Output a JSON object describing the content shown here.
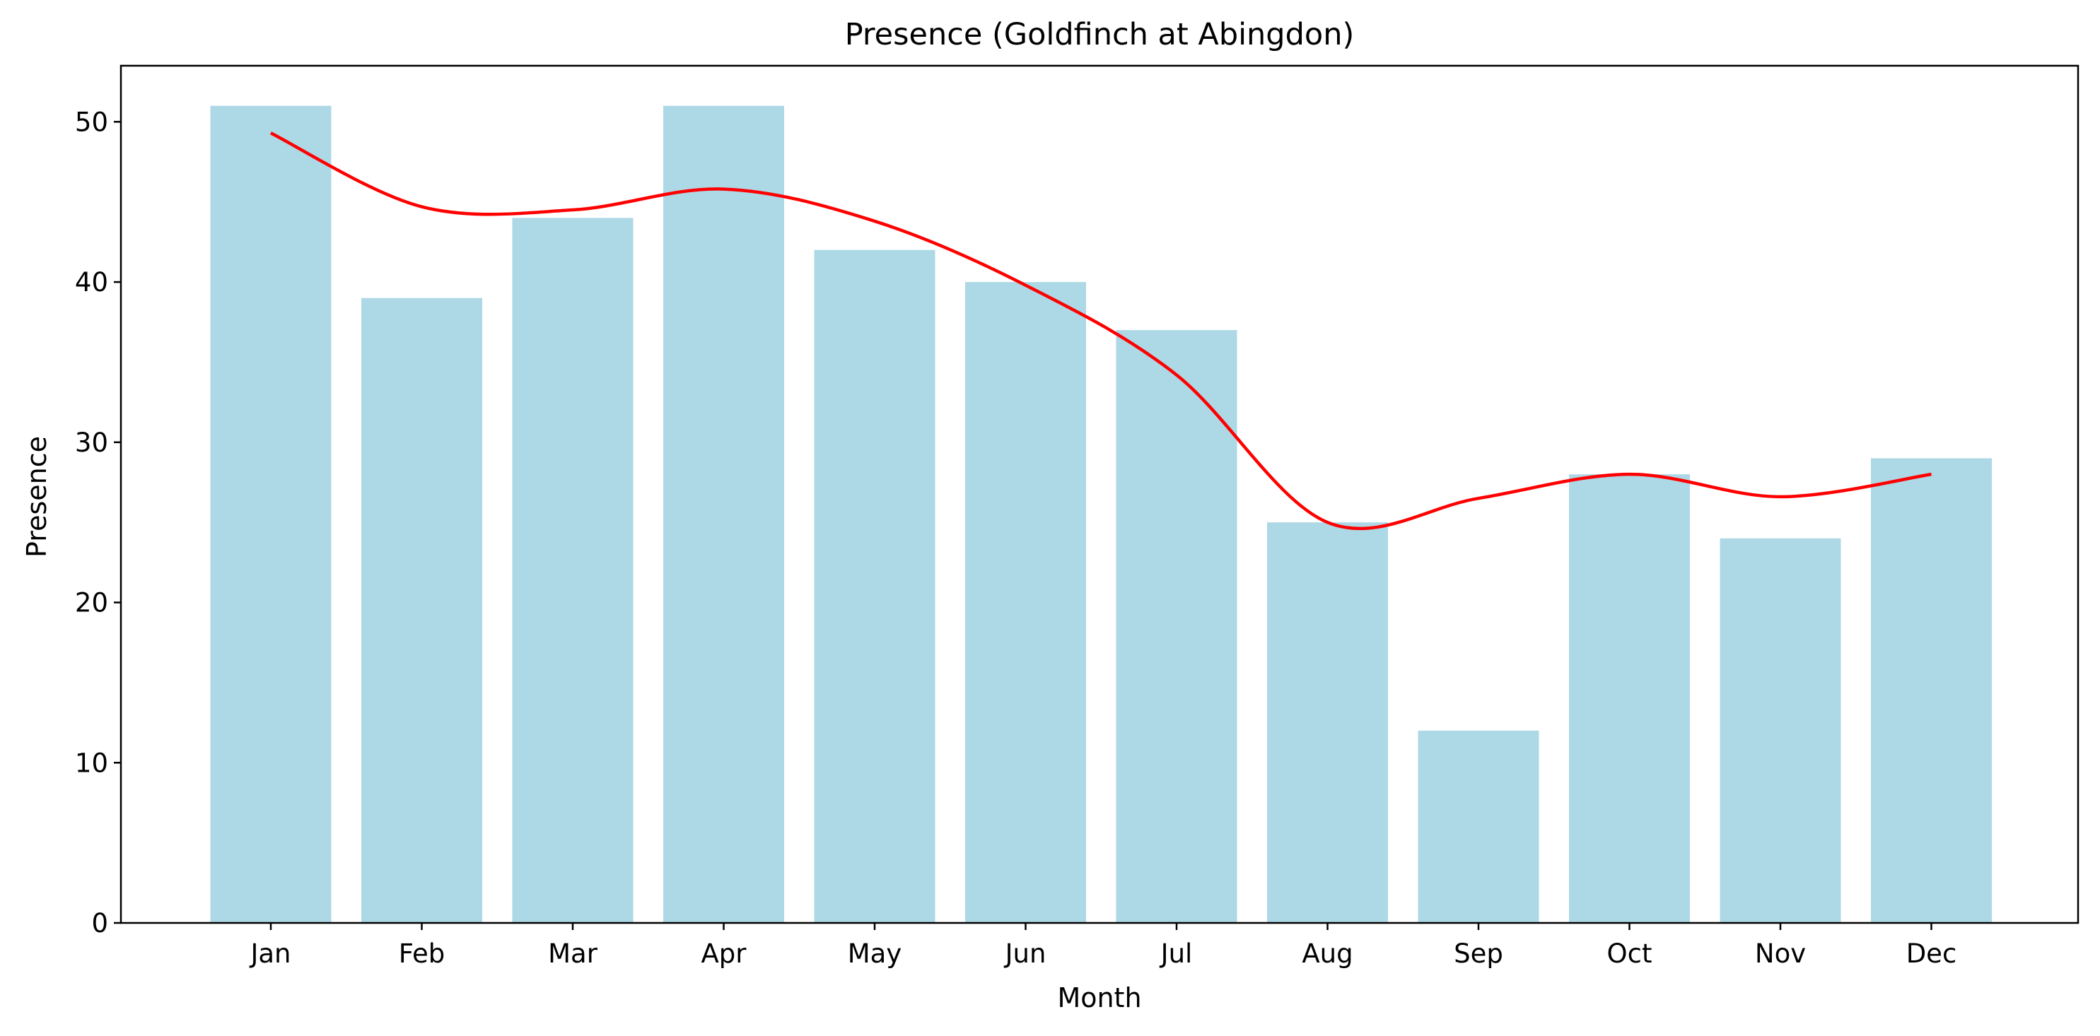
{
  "chart_data": {
    "type": "bar",
    "title": "Presence (Goldfinch at Abingdon)",
    "xlabel": "Month",
    "ylabel": "Presence",
    "categories": [
      "Jan",
      "Feb",
      "Mar",
      "Apr",
      "May",
      "Jun",
      "Jul",
      "Aug",
      "Sep",
      "Oct",
      "Nov",
      "Dec"
    ],
    "series": [
      {
        "type": "bar",
        "values": [
          51,
          39,
          44,
          51,
          42,
          40,
          37,
          25,
          12,
          28,
          24,
          29
        ],
        "color": "#add8e6"
      },
      {
        "type": "line",
        "smooth": true,
        "values": [
          49.3,
          44.7,
          44.5,
          45.8,
          43.8,
          39.8,
          34.2,
          25.0,
          26.5,
          28.0,
          26.6,
          28.0
        ],
        "color": "#ff0000"
      }
    ],
    "ylim": [
      0,
      53.5
    ],
    "yticks": [
      0,
      10,
      20,
      30,
      40,
      50
    ],
    "grid": false,
    "legend": "none"
  }
}
